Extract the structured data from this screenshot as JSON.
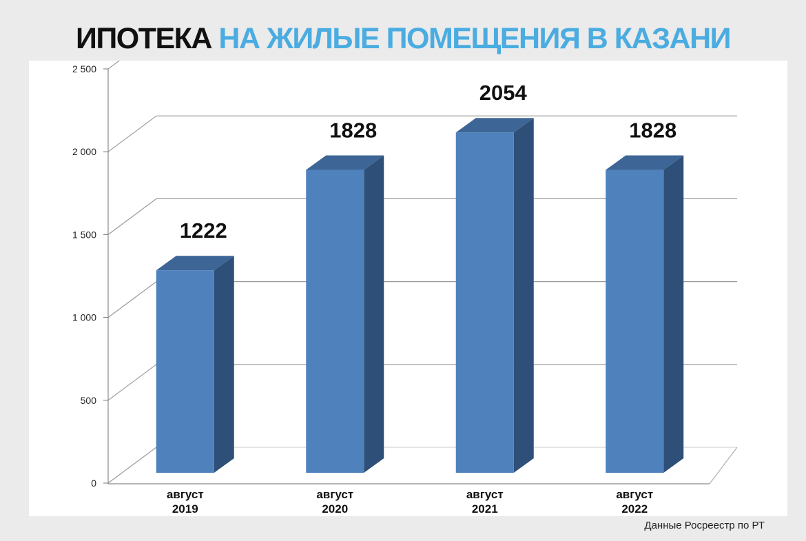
{
  "header": {
    "title_part1": "ИПОТЕКА",
    "title_part2": "НА ЖИЛЫЕ ПОМЕЩЕНИЯ В КАЗАНИ"
  },
  "footer": {
    "source": "Данные Росреестр по РТ"
  },
  "colors": {
    "accent": "#4aace0",
    "bar_front": "#4f81bd",
    "bar_side": "#2e5078",
    "bar_top": "#3d6596"
  },
  "chart_data": {
    "type": "bar",
    "categories": [
      [
        "август",
        "2019"
      ],
      [
        "август",
        "2020"
      ],
      [
        "август",
        "2021"
      ],
      [
        "август",
        "2022"
      ]
    ],
    "values": [
      1222,
      1828,
      2054,
      1828
    ],
    "data_labels": [
      "1222",
      "1828",
      "2054",
      "1828"
    ],
    "y_ticks": [
      0,
      500,
      1000,
      1500,
      2000,
      2500
    ],
    "y_tick_labels": [
      "0",
      "500",
      "1 000",
      "1 500",
      "2 000",
      "2 500"
    ],
    "ylim": [
      0,
      2500
    ],
    "grid": true,
    "style": "3d-column",
    "legend": "none"
  }
}
